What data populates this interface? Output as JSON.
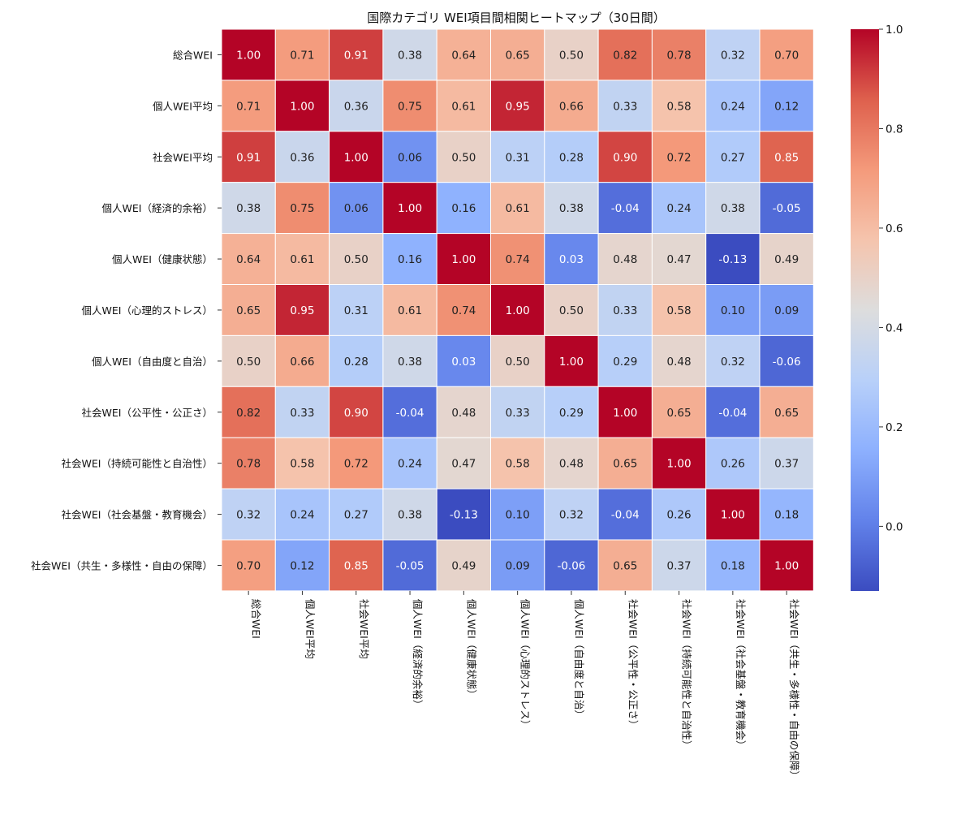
{
  "chart_data": {
    "type": "heatmap",
    "title": "国際カテゴリ WEI項目間相関ヒートマップ（30日間）",
    "labels": [
      "総合WEI",
      "個人WEI平均",
      "社会WEI平均",
      "個人WEI（経済的余裕）",
      "個人WEI（健康状態）",
      "個人WEI（心理的ストレス）",
      "個人WEI（自由度と自治）",
      "社会WEI（公平性・公正さ）",
      "社会WEI（持続可能性と自治性）",
      "社会WEI（社会基盤・教育機会）",
      "社会WEI（共生・多様性・自由の保障）"
    ],
    "matrix": [
      [
        1.0,
        0.71,
        0.91,
        0.38,
        0.64,
        0.65,
        0.5,
        0.82,
        0.78,
        0.32,
        0.7
      ],
      [
        0.71,
        1.0,
        0.36,
        0.75,
        0.61,
        0.95,
        0.66,
        0.33,
        0.58,
        0.24,
        0.12
      ],
      [
        0.91,
        0.36,
        1.0,
        0.06,
        0.5,
        0.31,
        0.28,
        0.9,
        0.72,
        0.27,
        0.85
      ],
      [
        0.38,
        0.75,
        0.06,
        1.0,
        0.16,
        0.61,
        0.38,
        -0.04,
        0.24,
        0.38,
        -0.05
      ],
      [
        0.64,
        0.61,
        0.5,
        0.16,
        1.0,
        0.74,
        0.03,
        0.48,
        0.47,
        -0.13,
        0.49
      ],
      [
        0.65,
        0.95,
        0.31,
        0.61,
        0.74,
        1.0,
        0.5,
        0.33,
        0.58,
        0.1,
        0.09
      ],
      [
        0.5,
        0.66,
        0.28,
        0.38,
        0.03,
        0.5,
        1.0,
        0.29,
        0.48,
        0.32,
        -0.06
      ],
      [
        0.82,
        0.33,
        0.9,
        -0.04,
        0.48,
        0.33,
        0.29,
        1.0,
        0.65,
        -0.04,
        0.65
      ],
      [
        0.78,
        0.58,
        0.72,
        0.24,
        0.47,
        0.58,
        0.48,
        0.65,
        1.0,
        0.26,
        0.37
      ],
      [
        0.32,
        0.24,
        0.27,
        0.38,
        -0.13,
        0.1,
        0.32,
        -0.04,
        0.26,
        1.0,
        0.18
      ],
      [
        0.7,
        0.12,
        0.85,
        -0.05,
        0.49,
        0.09,
        -0.06,
        0.65,
        0.37,
        0.18,
        1.0
      ]
    ],
    "colorbar": {
      "min": -0.13,
      "max": 1.0,
      "ticks": [
        "0.0",
        "0.2",
        "0.4",
        "0.6",
        "0.8",
        "1.0"
      ],
      "colormap": "coolwarm"
    },
    "colors": {
      "low": "#3b4cc0",
      "mid": "#dddddd",
      "high": "#b40426",
      "cell_border": "#ffffff",
      "text": "#222222"
    }
  }
}
